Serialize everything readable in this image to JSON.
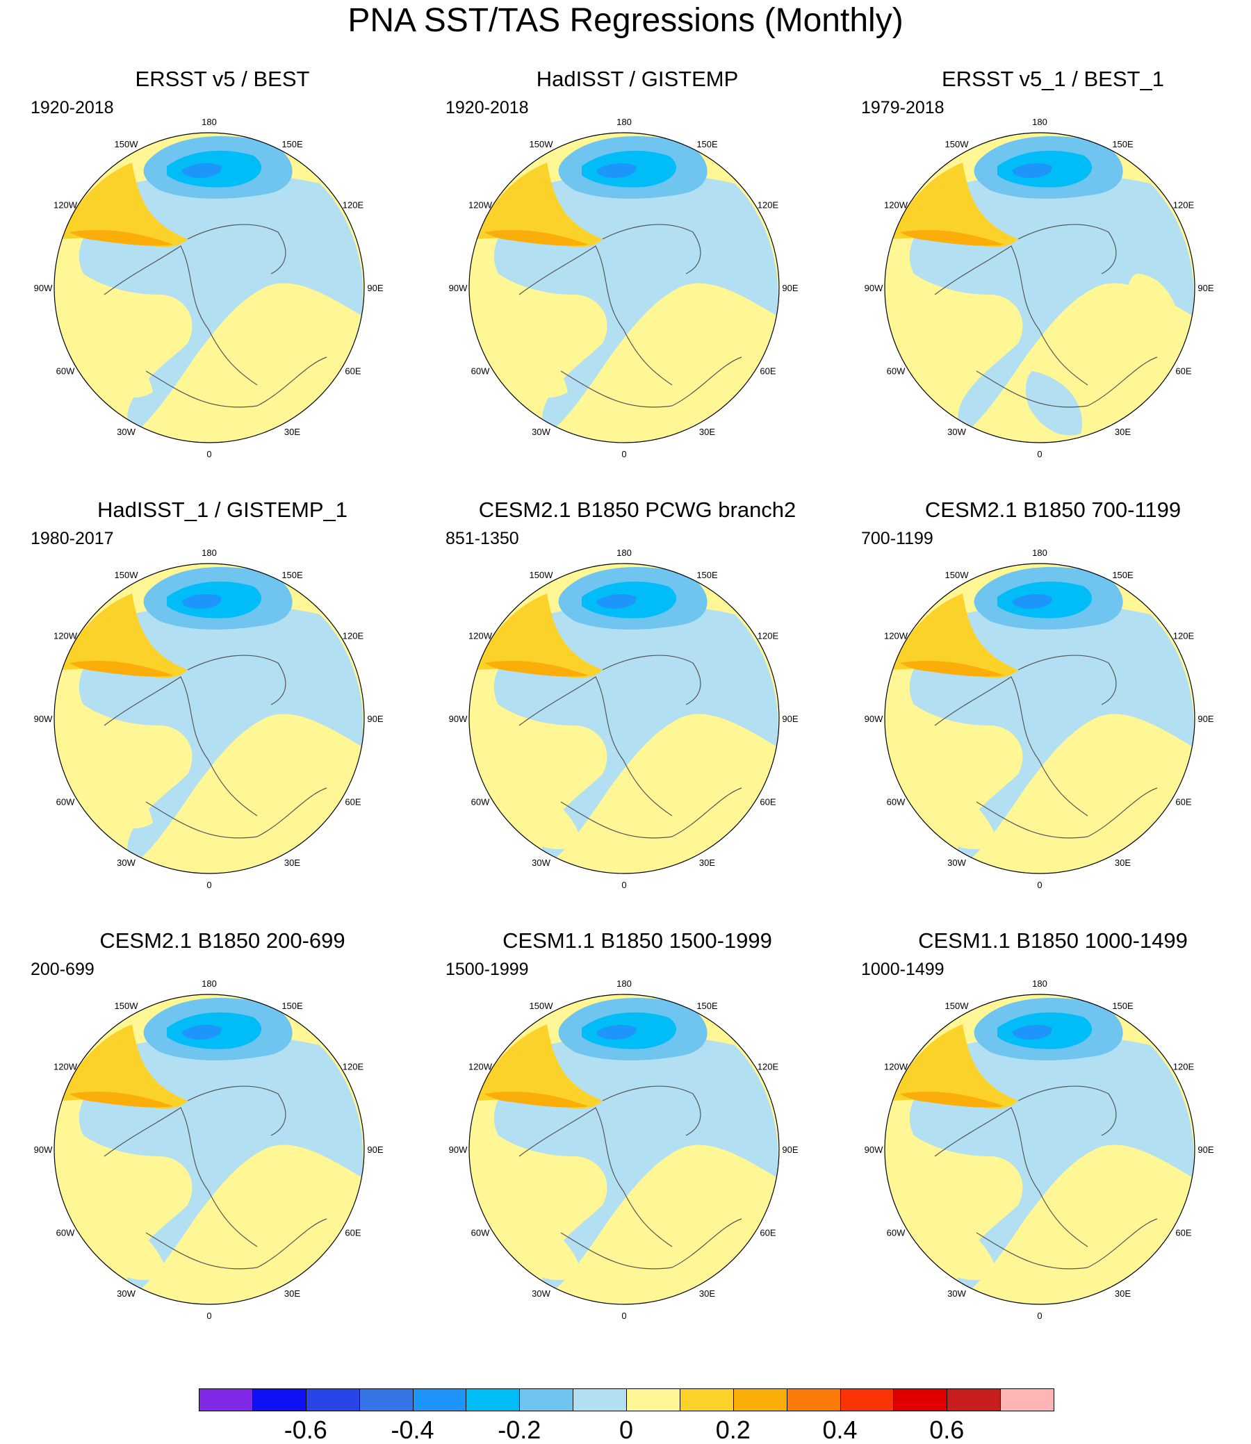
{
  "title": "PNA SST/TAS Regressions (Monthly)",
  "panels": [
    {
      "title": "ERSST v5 / BEST",
      "period": "1920-2018",
      "pattern": "a"
    },
    {
      "title": "HadISST / GISTEMP",
      "period": "1920-2018",
      "pattern": "a"
    },
    {
      "title": "ERSST v5_1 / BEST_1",
      "period": "1979-2018",
      "pattern": "b"
    },
    {
      "title": "HadISST_1 / GISTEMP_1",
      "period": "1980-2017",
      "pattern": "a"
    },
    {
      "title": "CESM2.1 B1850 PCWG branch2",
      "period": "851-1350",
      "pattern": "c"
    },
    {
      "title": "CESM2.1 B1850 700-1199",
      "period": "700-1199",
      "pattern": "c"
    },
    {
      "title": "CESM2.1 B1850 200-699",
      "period": "200-699",
      "pattern": "c"
    },
    {
      "title": "CESM1.1 B1850 1500-1999",
      "period": "1500-1999",
      "pattern": "c"
    },
    {
      "title": "CESM1.1 B1850 1000-1499",
      "period": "1000-1499",
      "pattern": "c"
    }
  ],
  "longitude_labels": [
    "180",
    "150E",
    "120E",
    "90E",
    "60E",
    "30E",
    "0",
    "30W",
    "60W",
    "90W",
    "120W",
    "150W"
  ],
  "colorbar": {
    "colors": [
      "#8229e8",
      "#1010f5",
      "#2845e8",
      "#3575e8",
      "#1e95fa",
      "#00bcf7",
      "#70c5f0",
      "#b3dff2",
      "#fff696",
      "#fbd22a",
      "#fbae0a",
      "#fb7a0a",
      "#fb3408",
      "#e10000",
      "#c91e1e",
      "#ffb5b5"
    ],
    "tick_labels": [
      "-0.6",
      "-0.4",
      "-0.2",
      "0",
      "0.2",
      "0.4",
      "0.6"
    ]
  }
}
